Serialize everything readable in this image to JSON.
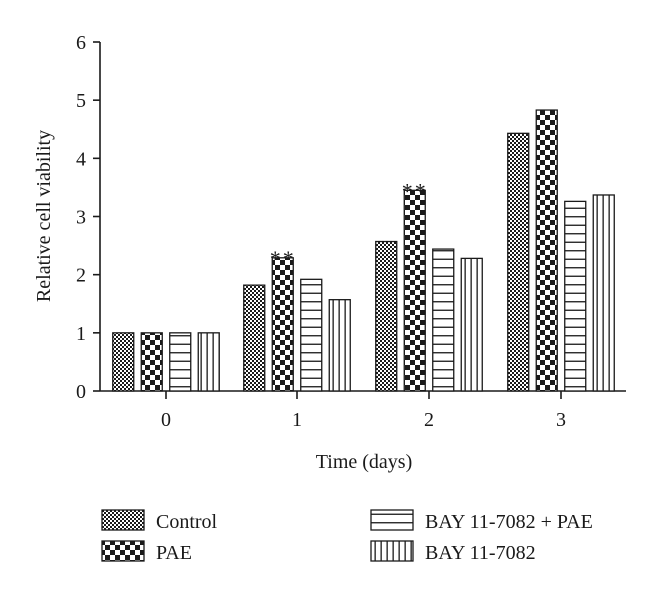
{
  "chart_data": {
    "type": "bar",
    "categories": [
      "0",
      "1",
      "2",
      "3"
    ],
    "xlabel": "Time (days)",
    "ylabel": "Relative cell viability",
    "ylim": [
      0,
      6
    ],
    "yticks": [
      "0",
      "1",
      "2",
      "3",
      "4",
      "5",
      "6"
    ],
    "grid": false,
    "legend_position": "bottom",
    "series": [
      {
        "name": "Control",
        "pattern": "fine-checker",
        "values": [
          1.0,
          1.82,
          2.57,
          4.43
        ]
      },
      {
        "name": "PAE",
        "pattern": "coarse-checker",
        "values": [
          1.0,
          2.29,
          3.45,
          4.83
        ]
      },
      {
        "name": "BAY 11-7082 + PAE",
        "pattern": "horizontal-stripes",
        "values": [
          1.0,
          1.92,
          2.44,
          3.26
        ]
      },
      {
        "name": "BAY 11-7082",
        "pattern": "vertical-stripes",
        "values": [
          1.0,
          1.57,
          2.28,
          3.37
        ]
      }
    ],
    "annotations": [
      {
        "text": "**",
        "series": "PAE",
        "category": "1"
      },
      {
        "text": "**",
        "series": "PAE",
        "category": "2"
      }
    ]
  }
}
